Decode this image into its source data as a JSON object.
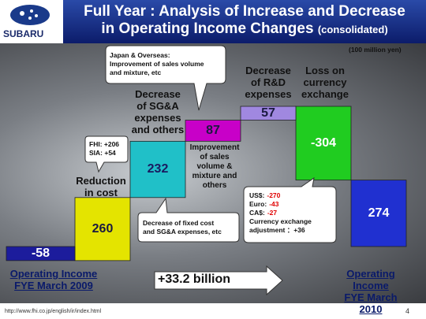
{
  "header": {
    "logo": "SUBARU",
    "title_line1": "Full Year : Analysis of Increase and Decrease",
    "title_line2": "in Operating Income Changes",
    "title_suffix": "(consolidated)"
  },
  "chart_data": {
    "type": "waterfall",
    "unit": "(100 million yen)",
    "categories": [
      "Operating Income\nFYE March 2009",
      "Reduction\nin cost",
      "Decrease\nof SG&A\nexpenses\nand others",
      "Improvement\nof sales\nvolume &\nmixture and\nothers",
      "Decrease\nof R&D\nexpenses",
      "Loss on\ncurrency\nexchange",
      "Operating Income\nFYE March 2010"
    ],
    "values": [
      -58,
      260,
      232,
      87,
      57,
      -304,
      274
    ],
    "colors": [
      "#1c1c9c",
      "#e4e400",
      "#20c0c8",
      "#c800c8",
      "#a088e0",
      "#20cc20",
      "#2030d0"
    ],
    "label_colors": [
      "#ffffff",
      "#1a1a40",
      "#1a1a60",
      "#1a1a40",
      "#1a1a40",
      "#ffffff",
      "#ffffff"
    ],
    "annotations": {
      "japan": "Japan & Overseas:\nImprovement of sales volume\nand mixture, etc",
      "fhi": "FHI: +206\nSIA: +54",
      "fixed": "Decrease of fixed cost\nand SG&A expenses,  etc",
      "currency": {
        "lines": [
          {
            "label": "US$:",
            "value": -270
          },
          {
            "label": "Euro:",
            "value": -43
          },
          {
            "label": "CA$:",
            "value": -27
          }
        ],
        "note": "Currency exchange\nadjustment  ：+36"
      }
    },
    "total_change": "+33.2 billion"
  },
  "footer": {
    "url": "http://www.fhi.co.jp/english/ir/index.html",
    "page": "4"
  }
}
